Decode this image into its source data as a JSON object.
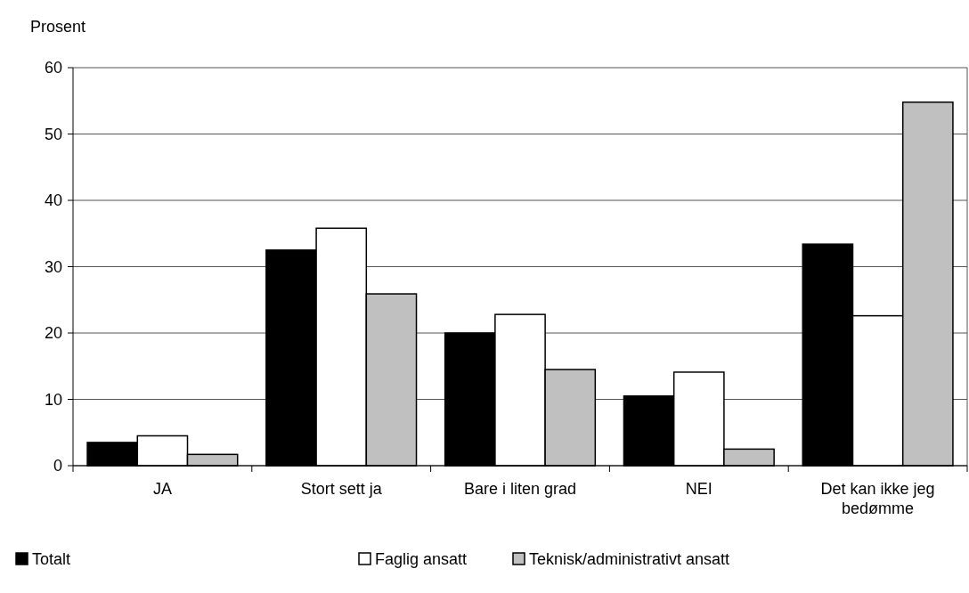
{
  "chart_data": {
    "type": "bar",
    "ylabel": "Prosent",
    "categories": [
      "JA",
      "Stort sett ja",
      "Bare i liten grad",
      "NEI",
      "Det kan ikke jeg bedømme"
    ],
    "series": [
      {
        "name": "Totalt",
        "color": "#000000",
        "values": [
          3.5,
          32.5,
          20.0,
          10.5,
          33.4
        ]
      },
      {
        "name": "Faglig ansatt",
        "color": "#ffffff",
        "values": [
          4.5,
          35.8,
          22.8,
          14.1,
          22.6
        ]
      },
      {
        "name": "Teknisk/administrativt ansatt",
        "color": "#c0c0c0",
        "values": [
          1.7,
          25.9,
          14.5,
          2.5,
          54.8
        ]
      }
    ],
    "ylim": [
      0,
      60
    ],
    "yticks": [
      0,
      10,
      20,
      30,
      40,
      50,
      60
    ],
    "grid": "y",
    "legend": "bottom"
  }
}
